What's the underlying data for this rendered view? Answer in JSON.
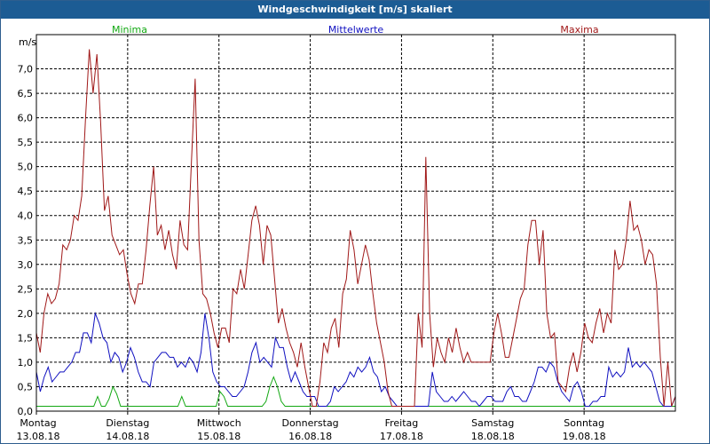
{
  "window": {
    "title": "Windgeschwindigkeit [m/s] skaliert"
  },
  "colors": {
    "min": "#12a812",
    "mean": "#1010c0",
    "max": "#a01818",
    "titlebar": "#1c5c94"
  },
  "chart_data": {
    "type": "line",
    "title": "Windgeschwindigkeit [m/s] skaliert",
    "ylabel": "m/s",
    "ylim": [
      0,
      7.7
    ],
    "xlim": [
      0,
      7
    ],
    "grid": true,
    "legend_placement": "top",
    "yticks": [
      "0,0",
      "0,5",
      "1,0",
      "1,5",
      "2,0",
      "2,5",
      "3,0",
      "3,5",
      "4,0",
      "4,5",
      "5,0",
      "5,5",
      "6,0",
      "6,5",
      "7,0"
    ],
    "days": [
      {
        "name": "Montag",
        "date": "13.08.18"
      },
      {
        "name": "Dienstag",
        "date": "14.08.18"
      },
      {
        "name": "Mittwoch",
        "date": "15.08.18"
      },
      {
        "name": "Donnerstag",
        "date": "16.08.18"
      },
      {
        "name": "Freitag",
        "date": "17.08.18"
      },
      {
        "name": "Samstag",
        "date": "18.08.18"
      },
      {
        "name": "Sonntag",
        "date": "19.08.18"
      }
    ],
    "series": [
      {
        "name": "Minima",
        "color": "#12a812",
        "values": [
          0.1,
          0.1,
          0.1,
          0.1,
          0.1,
          0.1,
          0.1,
          0.1,
          0.1,
          0.1,
          0.1,
          0.1,
          0.1,
          0.1,
          0.1,
          0.1,
          0.3,
          0.1,
          0.1,
          0.25,
          0.5,
          0.35,
          0.1,
          0.1,
          0.1,
          0.1,
          0.1,
          0.1,
          0.1,
          0.1,
          0.1,
          0.1,
          0.1,
          0.1,
          0.1,
          0.1,
          0.1,
          0.1,
          0.3,
          0.1,
          0.1,
          0.1,
          0.1,
          0.1,
          0.1,
          0.1,
          0.1,
          0.1,
          0.4,
          0.3,
          0.1,
          0.1,
          0.1,
          0.1,
          0.1,
          0.1,
          0.1,
          0.1,
          0.1,
          0.1,
          0.2,
          0.5,
          0.7,
          0.5,
          0.2,
          0.1,
          0.1,
          0.1,
          0.1,
          0.1,
          0.1,
          0.1,
          0.1,
          0.1,
          0.1,
          0.1,
          0.1,
          0.1,
          0.1,
          0.1,
          0.1,
          0.1,
          0.1,
          0.1,
          0.1,
          0.1,
          0.1,
          0.1,
          0.1,
          0.1,
          0.1,
          0.1,
          0.1,
          0.1,
          0.1,
          0.1,
          0.1,
          0.1,
          0.1,
          0.1,
          0.1,
          0.1,
          0.1,
          0.1,
          0.1,
          0.1,
          0.1,
          0.1,
          0.1,
          0.1,
          0.1,
          0.1,
          0.1,
          0.1,
          0.1,
          0.1,
          0.1,
          0.1,
          0.1,
          0.1,
          0.1,
          0.1,
          0.1,
          0.1,
          0.1,
          0.1,
          0.1,
          0.1,
          0.1,
          0.1,
          0.1,
          0.1,
          0.1,
          0.1,
          0.1,
          0.1,
          0.1,
          0.1,
          0.1,
          0.1,
          0.1,
          0.1,
          0.1,
          0.1,
          0.1,
          0.1,
          0.1,
          0.1,
          0.1,
          0.1,
          0.1,
          0.1,
          0.1,
          0.1,
          0.1,
          0.1,
          0.1,
          0.1,
          0.1,
          0.1,
          0.1,
          0.1,
          0.1,
          0.1,
          0.1,
          0.1,
          0.1,
          0.1
        ]
      },
      {
        "name": "Mittelwerte",
        "color": "#1010c0",
        "values": [
          0.8,
          0.4,
          0.7,
          0.9,
          0.6,
          0.7,
          0.8,
          0.8,
          0.9,
          1.0,
          1.2,
          1.2,
          1.6,
          1.6,
          1.4,
          2.0,
          1.8,
          1.5,
          1.4,
          1.0,
          1.2,
          1.1,
          0.8,
          1.0,
          1.3,
          1.1,
          0.8,
          0.6,
          0.6,
          0.5,
          1.0,
          1.1,
          1.2,
          1.2,
          1.1,
          1.1,
          0.9,
          1.0,
          0.9,
          1.1,
          1.0,
          0.8,
          1.2,
          2.0,
          1.5,
          0.8,
          0.6,
          0.5,
          0.5,
          0.4,
          0.3,
          0.3,
          0.4,
          0.5,
          0.8,
          1.2,
          1.4,
          1.0,
          1.1,
          1.0,
          0.9,
          1.5,
          1.3,
          1.3,
          0.9,
          0.6,
          0.8,
          0.6,
          0.4,
          0.3,
          0.3,
          0.3,
          0.1,
          0.1,
          0.1,
          0.2,
          0.5,
          0.4,
          0.5,
          0.6,
          0.8,
          0.7,
          0.9,
          0.8,
          0.9,
          1.1,
          0.8,
          0.7,
          0.4,
          0.5,
          0.3,
          0.2,
          0.1,
          0.1,
          0.1,
          0.1,
          0.1,
          0.1,
          0.1,
          0.1,
          0.1,
          0.8,
          0.4,
          0.3,
          0.2,
          0.2,
          0.3,
          0.2,
          0.3,
          0.4,
          0.3,
          0.2,
          0.2,
          0.1,
          0.2,
          0.3,
          0.3,
          0.2,
          0.2,
          0.2,
          0.4,
          0.5,
          0.3,
          0.3,
          0.2,
          0.2,
          0.4,
          0.6,
          0.9,
          0.9,
          0.8,
          1.0,
          0.9,
          0.6,
          0.4,
          0.3,
          0.2,
          0.5,
          0.6,
          0.4,
          0.1,
          0.1,
          0.2,
          0.2,
          0.3,
          0.3,
          0.9,
          0.7,
          0.8,
          0.7,
          0.8,
          1.3,
          0.9,
          1.0,
          0.9,
          1.0,
          0.9,
          0.8,
          0.5,
          0.2,
          0.1,
          0.1,
          0.1,
          0.3
        ]
      },
      {
        "name": "Maxima",
        "color": "#a01818",
        "values": [
          1.6,
          1.2,
          2.0,
          2.4,
          2.2,
          2.3,
          2.6,
          3.4,
          3.3,
          3.5,
          4.0,
          3.9,
          4.4,
          6.0,
          7.4,
          6.5,
          7.3,
          5.9,
          4.1,
          4.4,
          3.6,
          3.4,
          3.2,
          3.3,
          2.8,
          2.4,
          2.2,
          2.6,
          2.6,
          3.3,
          4.2,
          5.0,
          3.6,
          3.8,
          3.3,
          3.7,
          3.2,
          2.9,
          3.9,
          3.4,
          3.3,
          5.1,
          6.8,
          3.5,
          2.4,
          2.3,
          2.0,
          1.6,
          1.3,
          1.7,
          1.7,
          1.4,
          2.5,
          2.4,
          2.9,
          2.5,
          3.2,
          3.9,
          4.2,
          3.8,
          3.0,
          3.8,
          3.6,
          2.7,
          1.8,
          2.1,
          1.7,
          1.4,
          1.2,
          0.9,
          1.4,
          0.9,
          0.5,
          0.1,
          0.1,
          0.6,
          1.4,
          1.2,
          1.7,
          1.9,
          1.3,
          2.4,
          2.7,
          3.7,
          3.3,
          2.6,
          3.0,
          3.4,
          3.1,
          2.4,
          1.8,
          1.4,
          1.0,
          0.4,
          0.1,
          0.1,
          0.1,
          0.1,
          0.1,
          0.1,
          0.1,
          2.0,
          1.3,
          5.2,
          2.0,
          0.9,
          1.5,
          1.2,
          1.0,
          1.5,
          1.2,
          1.7,
          1.3,
          1.0,
          1.2,
          1.0,
          1.0,
          1.0,
          1.0,
          1.0,
          1.0,
          1.6,
          2.0,
          1.6,
          1.1,
          1.1,
          1.5,
          1.9,
          2.3,
          2.5,
          3.4,
          3.9,
          3.9,
          3.0,
          3.7,
          2.0,
          1.5,
          1.6,
          0.6,
          0.5,
          0.4,
          0.9,
          1.2,
          0.8,
          1.2,
          1.8,
          1.5,
          1.4,
          1.8,
          2.1,
          1.6,
          2.0,
          1.8,
          3.3,
          2.9,
          3.0,
          3.5,
          4.3,
          3.7,
          3.8,
          3.5,
          3.0,
          3.3,
          3.2,
          2.6,
          1.1,
          0.1,
          1.0,
          0.1,
          0.3
        ]
      }
    ]
  }
}
